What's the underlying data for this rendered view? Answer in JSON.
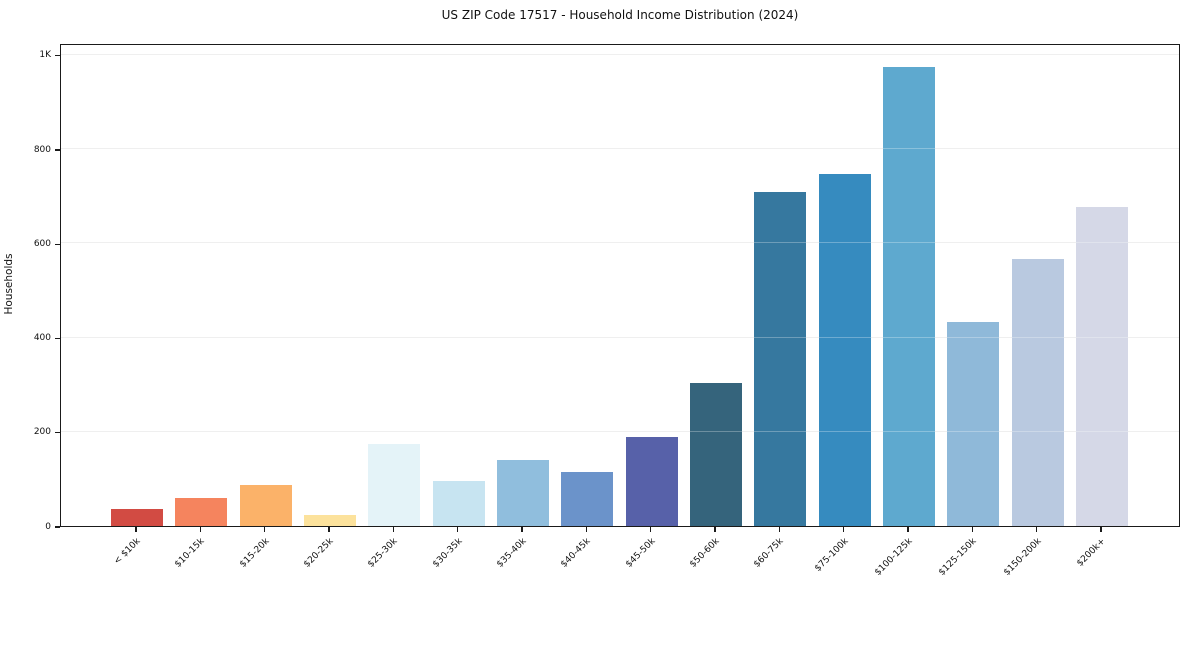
{
  "chart_data": {
    "type": "bar",
    "title": "US ZIP Code 17517 - Household Income Distribution (2024)",
    "xlabel": "",
    "ylabel": "Households",
    "categories": [
      "< $10k",
      "$10-15k",
      "$15-20k",
      "$20-25k",
      "$25-30k",
      "$30-35k",
      "$35-40k",
      "$40-45k",
      "$45-50k",
      "$50-60k",
      "$60-75k",
      "$75-100k",
      "$100-125k",
      "$125-150k",
      "$150-200k",
      "$200k+"
    ],
    "values": [
      36,
      59,
      87,
      23,
      173,
      96,
      140,
      115,
      189,
      303,
      709,
      746,
      975,
      432,
      566,
      676
    ],
    "bar_colors": [
      "#d24b43",
      "#f5845e",
      "#fbb269",
      "#fce29c",
      "#e4f3f8",
      "#c7e4f1",
      "#90bedd",
      "#6b93ca",
      "#5761a9",
      "#35647c",
      "#36789f",
      "#368bbf",
      "#5ea9cf",
      "#8fb9d9",
      "#b9c9e0",
      "#d5d8e7"
    ],
    "ylim": [
      0,
      1025
    ],
    "yticks": [
      {
        "value": 0,
        "label": "0"
      },
      {
        "value": 200,
        "label": "200"
      },
      {
        "value": 400,
        "label": "400"
      },
      {
        "value": 600,
        "label": "600"
      },
      {
        "value": 800,
        "label": "800"
      },
      {
        "value": 1000,
        "label": "1K"
      }
    ],
    "grid": "horizontal",
    "legend_position": "none"
  }
}
